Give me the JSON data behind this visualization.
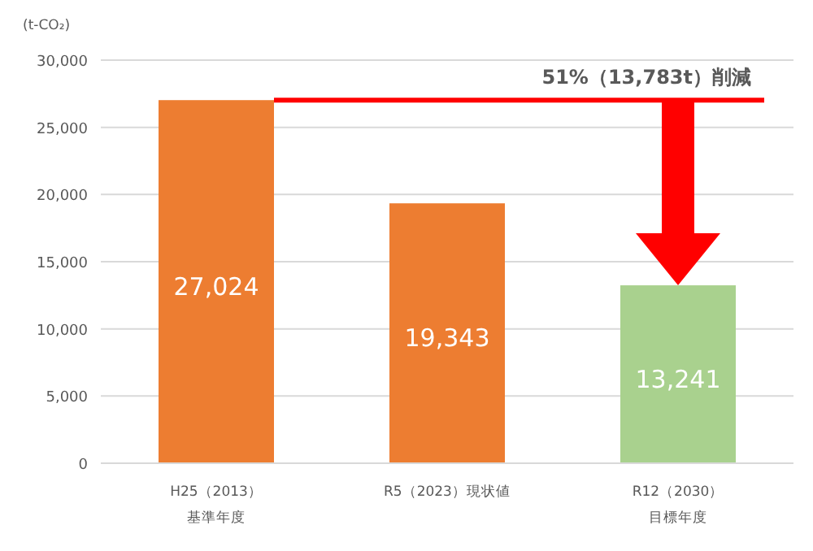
{
  "chart_data": {
    "type": "bar",
    "ylabel": "(t-CO₂)",
    "categories": [
      "H25（2013）基準年度",
      "R5（2023）現状値",
      "R12（2030）目標年度"
    ],
    "values": [
      27024,
      19343,
      13241
    ],
    "value_labels": [
      "27,024",
      "19,343",
      "13,241"
    ],
    "colors": [
      "#ed7d31",
      "#ed7d31",
      "#a9d18e"
    ],
    "ylim": [
      0,
      30000
    ],
    "yticks": [
      {
        "value": 0,
        "label": "0"
      },
      {
        "value": 5000,
        "label": "5,000"
      },
      {
        "value": 10000,
        "label": "10,000"
      },
      {
        "value": 15000,
        "label": "15,000"
      },
      {
        "value": 20000,
        "label": "20,000"
      },
      {
        "value": 25000,
        "label": "25,000"
      },
      {
        "value": 30000,
        "label": "30,000"
      }
    ],
    "grid": "y",
    "ref_lines": [
      {
        "axis": "y",
        "value": 27024,
        "label": "51%（13,783t）削減",
        "color": "#ff0000"
      }
    ]
  }
}
